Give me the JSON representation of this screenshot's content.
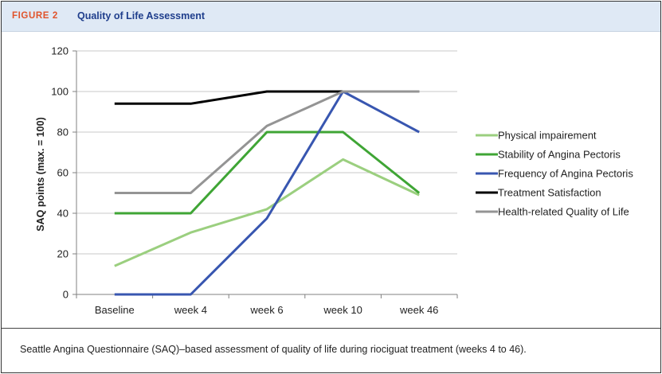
{
  "figure": {
    "label": "FIGURE 2",
    "title": "Quality of Life Assessment",
    "caption": "Seattle Angina Questionnaire (SAQ)–based assessment of quality of life during riociguat treatment (weeks 4 to 46)."
  },
  "colors": {
    "header_bg": "#dfe9f5",
    "label_red": "#e0532b",
    "title_blue": "#1f3e8c",
    "grid": "#c8c8c8"
  },
  "chart_data": {
    "type": "line",
    "title": "",
    "xlabel": "",
    "ylabel": "SAQ points (max. = 100)",
    "categories": [
      "Baseline",
      "week 4",
      "week 6",
      "week 10",
      "week 46"
    ],
    "ylim": [
      0,
      120
    ],
    "yticks": [
      0,
      20,
      40,
      60,
      80,
      100,
      120
    ],
    "grid": true,
    "legend_position": "right",
    "series": [
      {
        "name": "Physical impairement",
        "color": "#9bcf7f",
        "values": [
          14,
          30.5,
          42,
          66.5,
          49
        ]
      },
      {
        "name": "Stability of Angina Pectoris",
        "color": "#3fa535",
        "values": [
          40,
          40,
          80,
          80,
          50
        ]
      },
      {
        "name": "Frequency of Angina Pectoris",
        "color": "#3856b0",
        "values": [
          0,
          0,
          37.5,
          100,
          80
        ]
      },
      {
        "name": "Treatment Satisfaction",
        "color": "#000000",
        "values": [
          94,
          94,
          100,
          100,
          100
        ]
      },
      {
        "name": "Health-related Quality of Life",
        "color": "#949494",
        "values": [
          50,
          50,
          83,
          100,
          100
        ]
      }
    ]
  }
}
